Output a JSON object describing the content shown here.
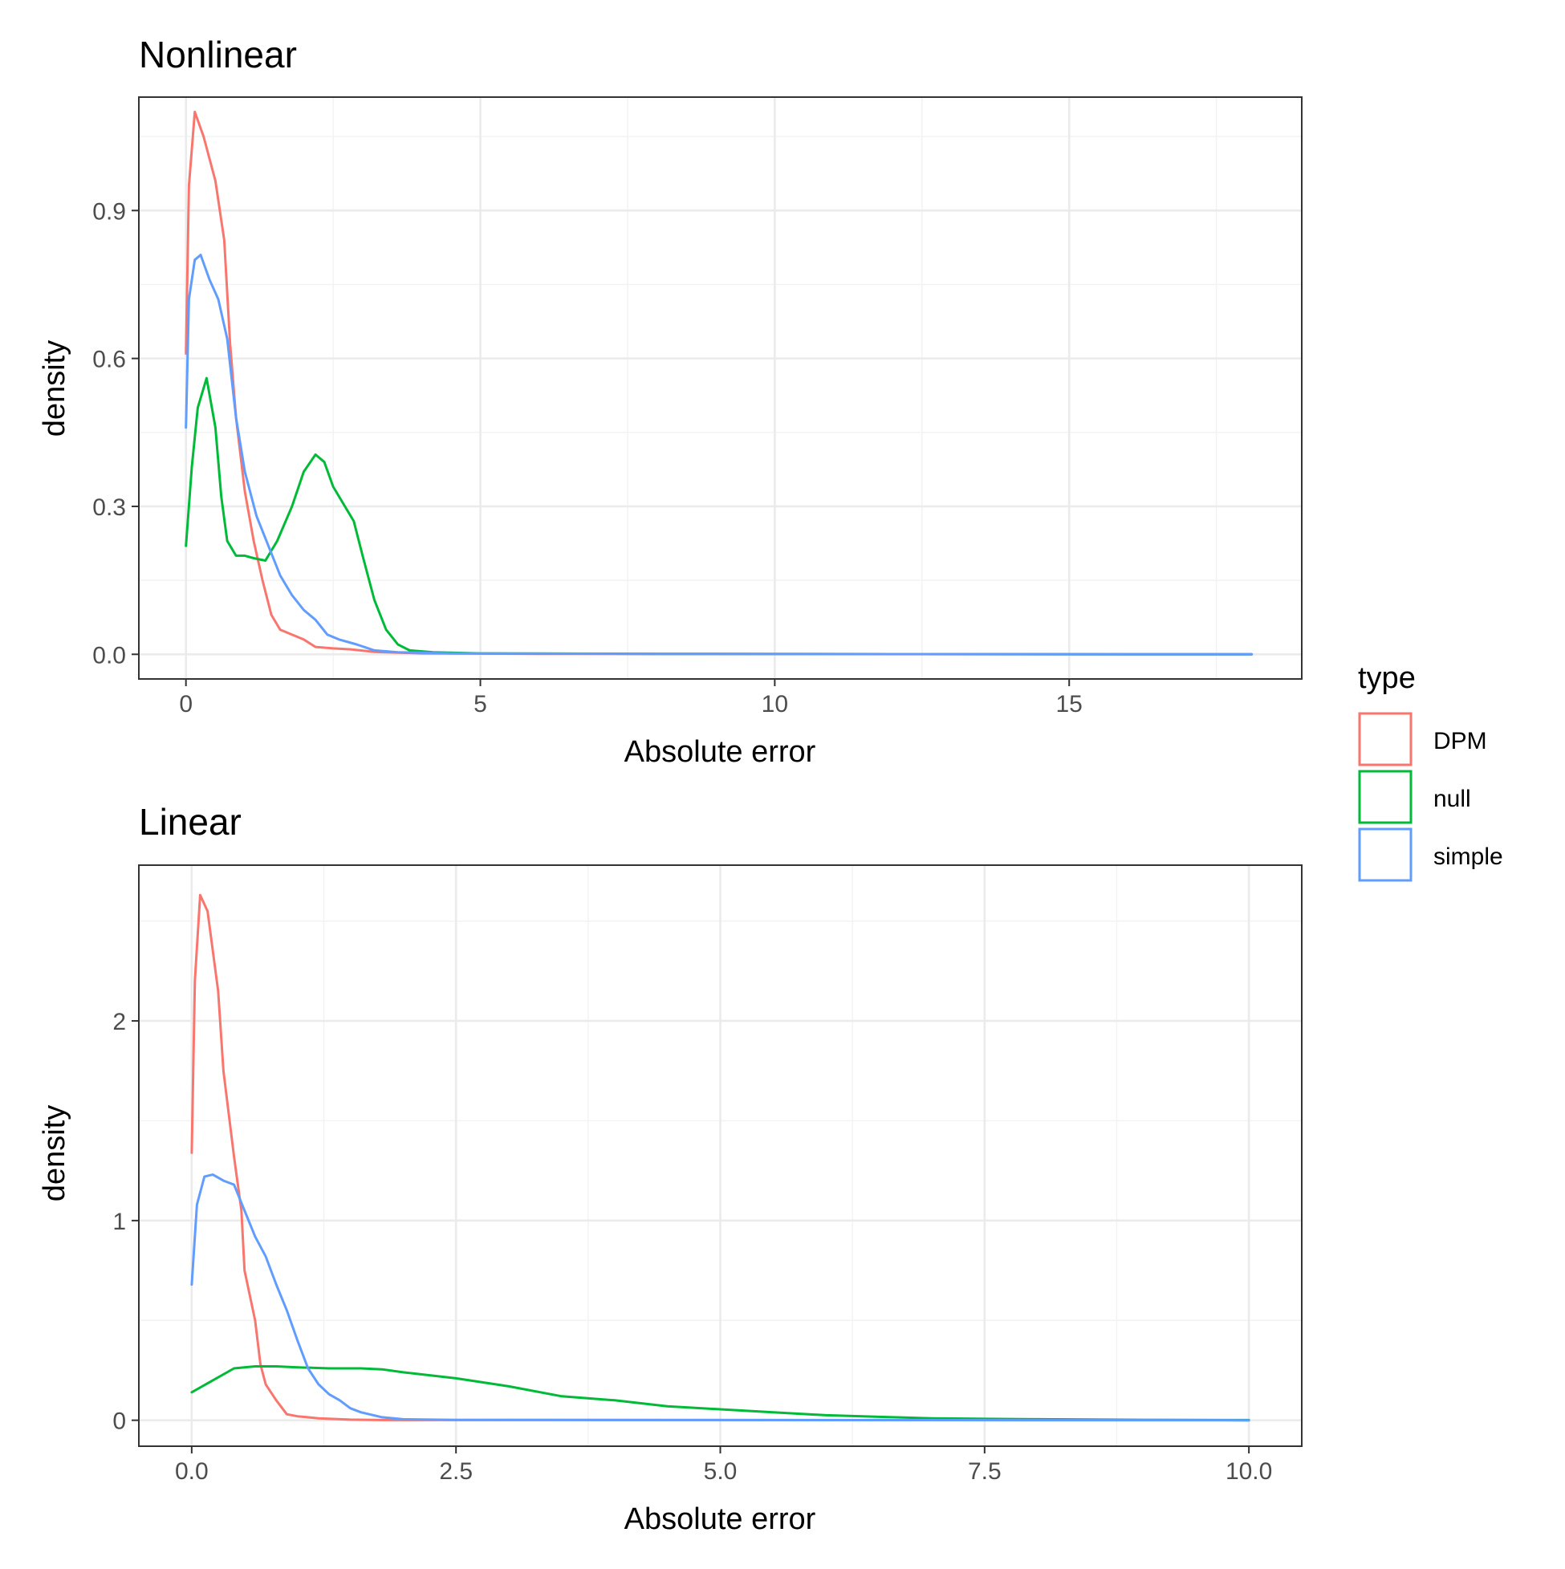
{
  "colors": {
    "DPM": "#F8766D",
    "null": "#00BA38",
    "simple": "#619CFF"
  },
  "legend": {
    "title": "type",
    "entries": [
      {
        "label": "DPM",
        "color": "#F8766D"
      },
      {
        "label": "null",
        "color": "#00BA38"
      },
      {
        "label": "simple",
        "color": "#619CFF"
      }
    ]
  },
  "chart_data": [
    {
      "type": "line",
      "title": "Nonlinear",
      "xlabel": "Absolute error",
      "ylabel": "density",
      "xlim": [
        -0.8,
        18.95
      ],
      "ylim": [
        -0.05,
        1.13
      ],
      "xticks": [
        0,
        5,
        10,
        15
      ],
      "xtick_labels": [
        "0",
        "5",
        "10",
        "15"
      ],
      "yticks": [
        0,
        0.3,
        0.6,
        0.9
      ],
      "ytick_labels": [
        "0.0",
        "0.3",
        "0.6",
        "0.9"
      ],
      "grid": true,
      "legend_position": "right",
      "series": [
        {
          "name": "DPM",
          "points": [
            [
              0,
              0.61
            ],
            [
              0.05,
              0.95
            ],
            [
              0.15,
              1.1
            ],
            [
              0.3,
              1.05
            ],
            [
              0.5,
              0.96
            ],
            [
              0.65,
              0.84
            ],
            [
              0.75,
              0.63
            ],
            [
              0.85,
              0.48
            ],
            [
              1.0,
              0.33
            ],
            [
              1.15,
              0.23
            ],
            [
              1.3,
              0.15
            ],
            [
              1.45,
              0.08
            ],
            [
              1.6,
              0.05
            ],
            [
              1.8,
              0.04
            ],
            [
              2.0,
              0.03
            ],
            [
              2.2,
              0.015
            ],
            [
              2.5,
              0.012
            ],
            [
              2.8,
              0.01
            ],
            [
              3.2,
              0.005
            ],
            [
              4,
              0.002
            ],
            [
              6,
              0.001
            ],
            [
              10,
              0.0005
            ],
            [
              18.1,
              0
            ]
          ]
        },
        {
          "name": "null",
          "points": [
            [
              0,
              0.22
            ],
            [
              0.1,
              0.38
            ],
            [
              0.2,
              0.5
            ],
            [
              0.35,
              0.56
            ],
            [
              0.5,
              0.46
            ],
            [
              0.6,
              0.32
            ],
            [
              0.7,
              0.23
            ],
            [
              0.85,
              0.2
            ],
            [
              1.0,
              0.2
            ],
            [
              1.15,
              0.195
            ],
            [
              1.35,
              0.19
            ],
            [
              1.55,
              0.23
            ],
            [
              1.8,
              0.3
            ],
            [
              2.0,
              0.37
            ],
            [
              2.2,
              0.405
            ],
            [
              2.35,
              0.39
            ],
            [
              2.5,
              0.34
            ],
            [
              2.7,
              0.3
            ],
            [
              2.85,
              0.27
            ],
            [
              3.0,
              0.2
            ],
            [
              3.2,
              0.11
            ],
            [
              3.4,
              0.05
            ],
            [
              3.6,
              0.02
            ],
            [
              3.8,
              0.008
            ],
            [
              4.2,
              0.004
            ],
            [
              5,
              0.002
            ],
            [
              8,
              0.001
            ],
            [
              12,
              0.0005
            ],
            [
              18.1,
              0
            ]
          ]
        },
        {
          "name": "simple",
          "points": [
            [
              0,
              0.46
            ],
            [
              0.05,
              0.72
            ],
            [
              0.15,
              0.8
            ],
            [
              0.25,
              0.81
            ],
            [
              0.4,
              0.76
            ],
            [
              0.55,
              0.72
            ],
            [
              0.7,
              0.64
            ],
            [
              0.85,
              0.48
            ],
            [
              1.0,
              0.37
            ],
            [
              1.2,
              0.28
            ],
            [
              1.4,
              0.22
            ],
            [
              1.6,
              0.16
            ],
            [
              1.8,
              0.12
            ],
            [
              2.0,
              0.09
            ],
            [
              2.2,
              0.07
            ],
            [
              2.4,
              0.04
            ],
            [
              2.6,
              0.03
            ],
            [
              2.9,
              0.02
            ],
            [
              3.2,
              0.008
            ],
            [
              3.6,
              0.004
            ],
            [
              4.5,
              0.002
            ],
            [
              8,
              0.001
            ],
            [
              12,
              0.0005
            ],
            [
              18.1,
              0
            ]
          ]
        }
      ]
    },
    {
      "type": "line",
      "title": "Linear",
      "xlabel": "Absolute error",
      "ylabel": "density",
      "xlim": [
        -0.5,
        10.5
      ],
      "ylim": [
        -0.13,
        2.78
      ],
      "xticks": [
        0,
        2.5,
        5,
        7.5,
        10
      ],
      "xtick_labels": [
        "0.0",
        "2.5",
        "5.0",
        "7.5",
        "10.0"
      ],
      "yticks": [
        0,
        1,
        2
      ],
      "ytick_labels": [
        "0",
        "1",
        "2"
      ],
      "grid": true,
      "legend_position": "right",
      "series": [
        {
          "name": "DPM",
          "points": [
            [
              0,
              1.34
            ],
            [
              0.03,
              2.2
            ],
            [
              0.08,
              2.63
            ],
            [
              0.15,
              2.55
            ],
            [
              0.25,
              2.15
            ],
            [
              0.3,
              1.75
            ],
            [
              0.4,
              1.32
            ],
            [
              0.47,
              1.05
            ],
            [
              0.5,
              0.75
            ],
            [
              0.6,
              0.5
            ],
            [
              0.65,
              0.28
            ],
            [
              0.7,
              0.18
            ],
            [
              0.8,
              0.1
            ],
            [
              0.9,
              0.03
            ],
            [
              1.0,
              0.02
            ],
            [
              1.2,
              0.01
            ],
            [
              1.5,
              0.003
            ],
            [
              1.8,
              0.001
            ],
            [
              3.6,
              0.002
            ],
            [
              5,
              0.001
            ],
            [
              8,
              0.0005
            ],
            [
              9.2,
              0.002
            ],
            [
              10,
              0
            ]
          ]
        },
        {
          "name": "null",
          "points": [
            [
              0,
              0.14
            ],
            [
              0.2,
              0.2
            ],
            [
              0.4,
              0.26
            ],
            [
              0.6,
              0.27
            ],
            [
              0.8,
              0.27
            ],
            [
              1.0,
              0.265
            ],
            [
              1.3,
              0.26
            ],
            [
              1.6,
              0.26
            ],
            [
              1.8,
              0.255
            ],
            [
              2.0,
              0.24
            ],
            [
              2.5,
              0.21
            ],
            [
              3.0,
              0.17
            ],
            [
              3.5,
              0.12
            ],
            [
              4.0,
              0.1
            ],
            [
              4.5,
              0.07
            ],
            [
              5.0,
              0.055
            ],
            [
              5.5,
              0.04
            ],
            [
              6.0,
              0.025
            ],
            [
              6.5,
              0.017
            ],
            [
              7.0,
              0.01
            ],
            [
              7.5,
              0.007
            ],
            [
              8.0,
              0.005
            ],
            [
              9.0,
              0.002
            ],
            [
              10,
              0.001
            ]
          ]
        },
        {
          "name": "simple",
          "points": [
            [
              0,
              0.68
            ],
            [
              0.05,
              1.08
            ],
            [
              0.12,
              1.22
            ],
            [
              0.2,
              1.23
            ],
            [
              0.3,
              1.2
            ],
            [
              0.4,
              1.18
            ],
            [
              0.5,
              1.05
            ],
            [
              0.6,
              0.92
            ],
            [
              0.7,
              0.82
            ],
            [
              0.8,
              0.68
            ],
            [
              0.9,
              0.55
            ],
            [
              1.0,
              0.4
            ],
            [
              1.1,
              0.26
            ],
            [
              1.2,
              0.18
            ],
            [
              1.3,
              0.13
            ],
            [
              1.4,
              0.1
            ],
            [
              1.5,
              0.06
            ],
            [
              1.6,
              0.04
            ],
            [
              1.8,
              0.015
            ],
            [
              2.0,
              0.005
            ],
            [
              2.5,
              0.002
            ],
            [
              5,
              0.001
            ],
            [
              10,
              0
            ]
          ]
        }
      ]
    }
  ]
}
